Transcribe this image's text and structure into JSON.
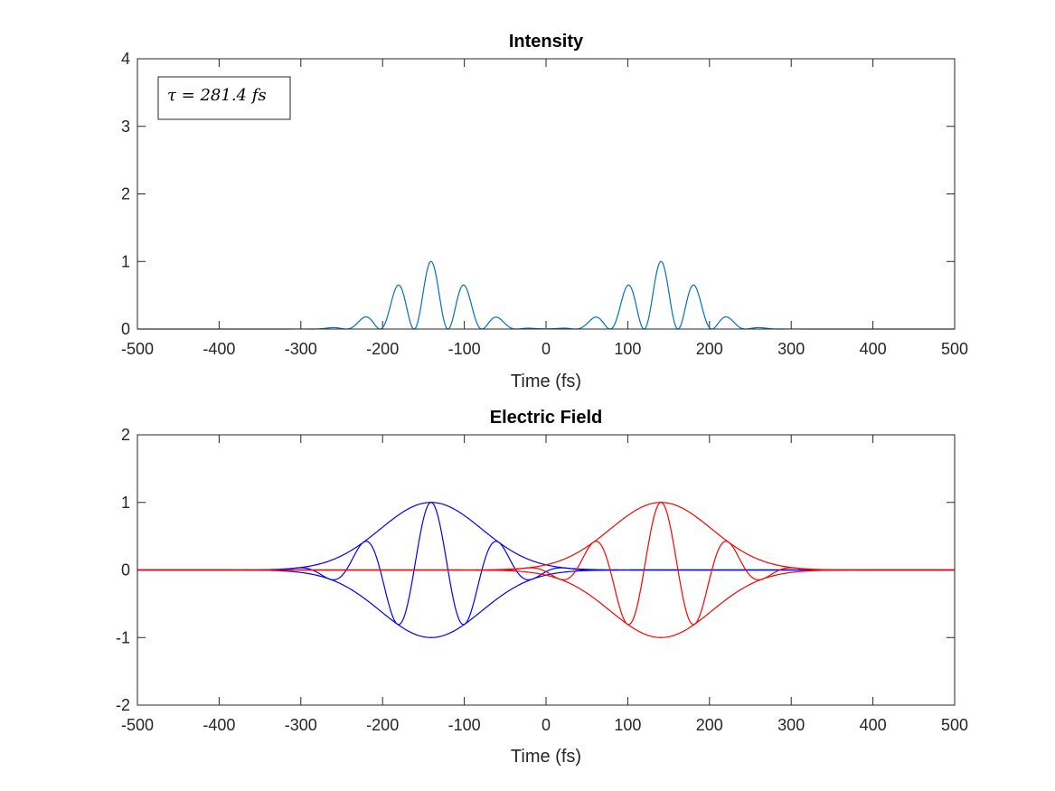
{
  "chart_data": [
    {
      "type": "line",
      "title": "Intensity",
      "xlabel": "Time (fs)",
      "ylabel": "",
      "xlim": [
        -500,
        500
      ],
      "ylim": [
        0,
        4
      ],
      "xticks": [
        "-500",
        "-400",
        "-300",
        "-200",
        "-100",
        "0",
        "100",
        "200",
        "300",
        "400",
        "500"
      ],
      "yticks": [
        "0",
        "1",
        "2",
        "3",
        "4"
      ],
      "annotation": "τ = 281.4 fs",
      "annotation_placement": "top-left",
      "grid": false,
      "colors": {
        "intensity": "#0072BD"
      },
      "model": {
        "pulse_separation_fs": 281.4,
        "carrier_period_fs": 83,
        "envelope_sigma_fs": 62
      },
      "series": [
        {
          "x": [
            -500,
            -350,
            -310,
            -265,
            -223,
            -182,
            -140,
            -98,
            -57,
            0,
            57,
            98,
            140,
            182,
            223,
            265,
            310,
            350,
            500
          ],
          "values": [
            0,
            0.01,
            0.06,
            0.2,
            0.49,
            0.82,
            0.97,
            0.78,
            0.38,
            0.13,
            0.38,
            0.78,
            0.97,
            0.82,
            0.49,
            0.2,
            0.06,
            0.01,
            0
          ]
        }
      ]
    },
    {
      "type": "line",
      "title": "Electric Field",
      "xlabel": "Time (fs)",
      "ylabel": "",
      "xlim": [
        -500,
        500
      ],
      "ylim": [
        -2,
        2
      ],
      "xticks": [
        "-500",
        "-400",
        "-300",
        "-200",
        "-100",
        "0",
        "100",
        "200",
        "300",
        "400",
        "500"
      ],
      "yticks": [
        "-2",
        "-1",
        "0",
        "1",
        "2"
      ],
      "grid": false,
      "colors": {
        "pulse1": "#0000FF",
        "pulse2": "#FF0000"
      },
      "model": {
        "pulse1_center_fs": -140.7,
        "pulse2_center_fs": 140.7,
        "carrier_period_fs": 83,
        "envelope_sigma_fs": 62,
        "envelope_amplitude": 1
      },
      "series": [
        {
          "x": [
            -140,
            -98,
            -57,
            -15,
            27,
            -182,
            -223,
            -265,
            -307
          ],
          "values": [
            1,
            -0.92,
            0.71,
            -0.45,
            0.25,
            -0.92,
            0.71,
            -0.45,
            0.25
          ]
        },
        {
          "x": [
            140,
            98,
            57,
            15,
            -27,
            182,
            223,
            265,
            307
          ],
          "values": [
            1,
            -0.92,
            0.71,
            -0.45,
            0.25,
            -0.92,
            0.71,
            -0.45,
            0.25
          ]
        }
      ]
    }
  ]
}
